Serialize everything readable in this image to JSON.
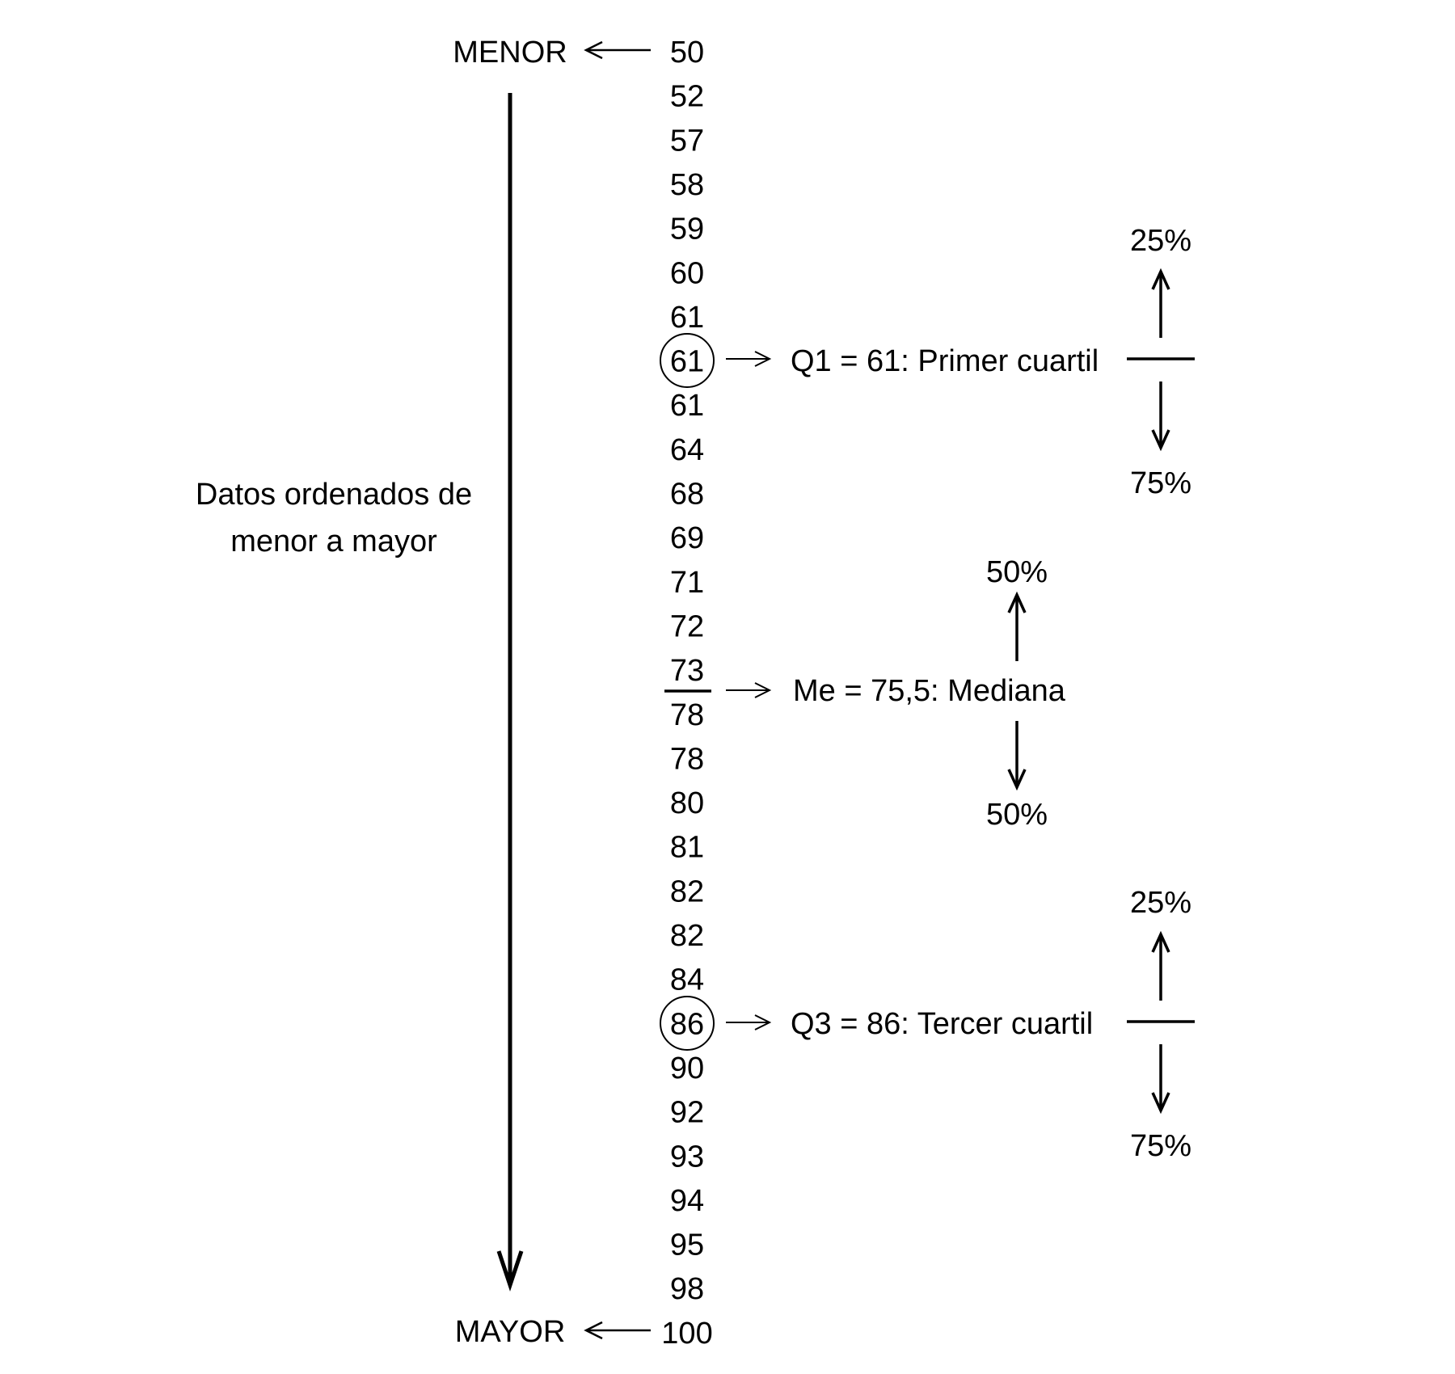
{
  "labels": {
    "menor": "MENOR",
    "mayor": "MAYOR",
    "description_line1": "Datos ordenados de",
    "description_line2": "menor a mayor"
  },
  "values": [
    "50",
    "52",
    "57",
    "58",
    "59",
    "60",
    "61",
    "61",
    "61",
    "64",
    "68",
    "69",
    "71",
    "72",
    "73",
    "78",
    "78",
    "80",
    "81",
    "82",
    "82",
    "84",
    "86",
    "90",
    "92",
    "93",
    "94",
    "95",
    "98",
    "100"
  ],
  "circled_indices": [
    7,
    22
  ],
  "median_split_after_index": 14,
  "q1": {
    "label": "Q1 = 61: Primer cuartil",
    "above": "25%",
    "below": "75%"
  },
  "median": {
    "label": "Me = 75,5: Mediana",
    "above": "50%",
    "below": "50%"
  },
  "q3": {
    "label": "Q3 = 86: Tercer cuartil",
    "above": "25%",
    "below": "75%"
  }
}
